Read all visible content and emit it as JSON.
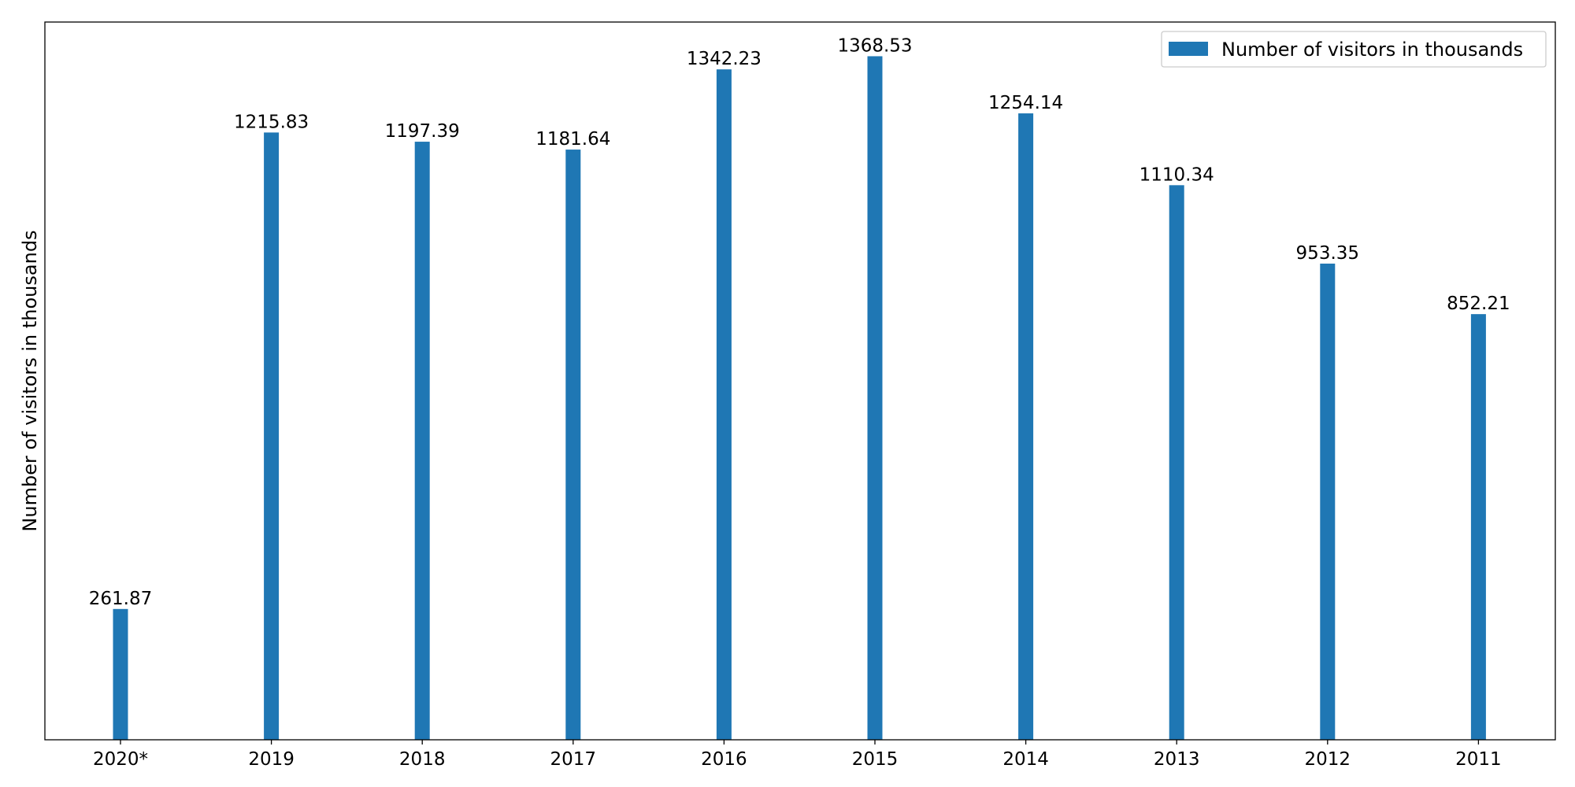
{
  "chart_data": {
    "type": "bar",
    "categories": [
      "2020*",
      "2019",
      "2018",
      "2017",
      "2016",
      "2015",
      "2014",
      "2013",
      "2012",
      "2011"
    ],
    "series": [
      {
        "name": "Number of visitors in thousands",
        "values": [
          261.87,
          1215.83,
          1197.39,
          1181.64,
          1342.23,
          1368.53,
          1254.14,
          1110.34,
          953.35,
          852.21
        ]
      }
    ],
    "value_labels": [
      "261.87",
      "1215.83",
      "1197.39",
      "1181.64",
      "1342.23",
      "1368.53",
      "1254.14",
      "1110.34",
      "953.35",
      "852.21"
    ],
    "title": "",
    "xlabel": "",
    "ylabel": "Number of visitors in thousands",
    "ylim": [
      0,
      1437
    ],
    "y_ticks_shown": false,
    "grid": false,
    "legend_position": "top-right",
    "colors": {
      "bar": "#1f77b4",
      "axes": "#000000",
      "legend_border": "#cccccc"
    }
  }
}
